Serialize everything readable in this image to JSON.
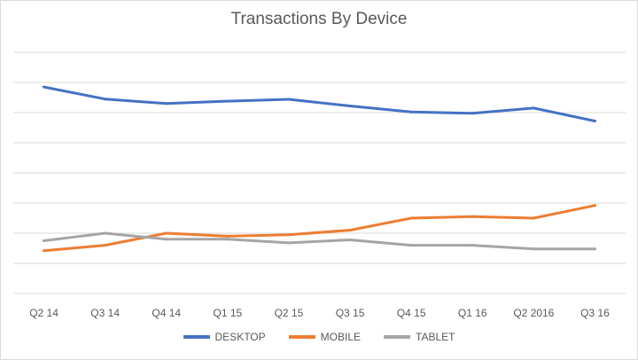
{
  "chart_data": {
    "type": "line",
    "title": "Transactions By Device",
    "xlabel": "",
    "ylabel": "",
    "categories": [
      "Q2 14",
      "Q3 14",
      "Q4 14",
      "Q1 15",
      "Q2 15",
      "Q3 15",
      "Q4 15",
      "Q1 16",
      "Q2 2016",
      "Q3 16"
    ],
    "ylim": [
      0,
      8
    ],
    "grid": true,
    "legend": "bottom",
    "series": [
      {
        "name": "DESKTOP",
        "color": "#4472c4",
        "values": [
          6.85,
          6.45,
          6.3,
          6.38,
          6.44,
          6.22,
          6.02,
          5.98,
          6.15,
          5.72
        ]
      },
      {
        "name": "MOBILE",
        "color": "#ed7d31",
        "values": [
          1.42,
          1.6,
          2.0,
          1.9,
          1.95,
          2.1,
          2.5,
          2.55,
          2.5,
          2.92
        ]
      },
      {
        "name": "TABLET",
        "color": "#a5a5a5",
        "values": [
          1.75,
          2.0,
          1.8,
          1.8,
          1.68,
          1.78,
          1.6,
          1.6,
          1.48,
          1.48
        ]
      }
    ]
  }
}
